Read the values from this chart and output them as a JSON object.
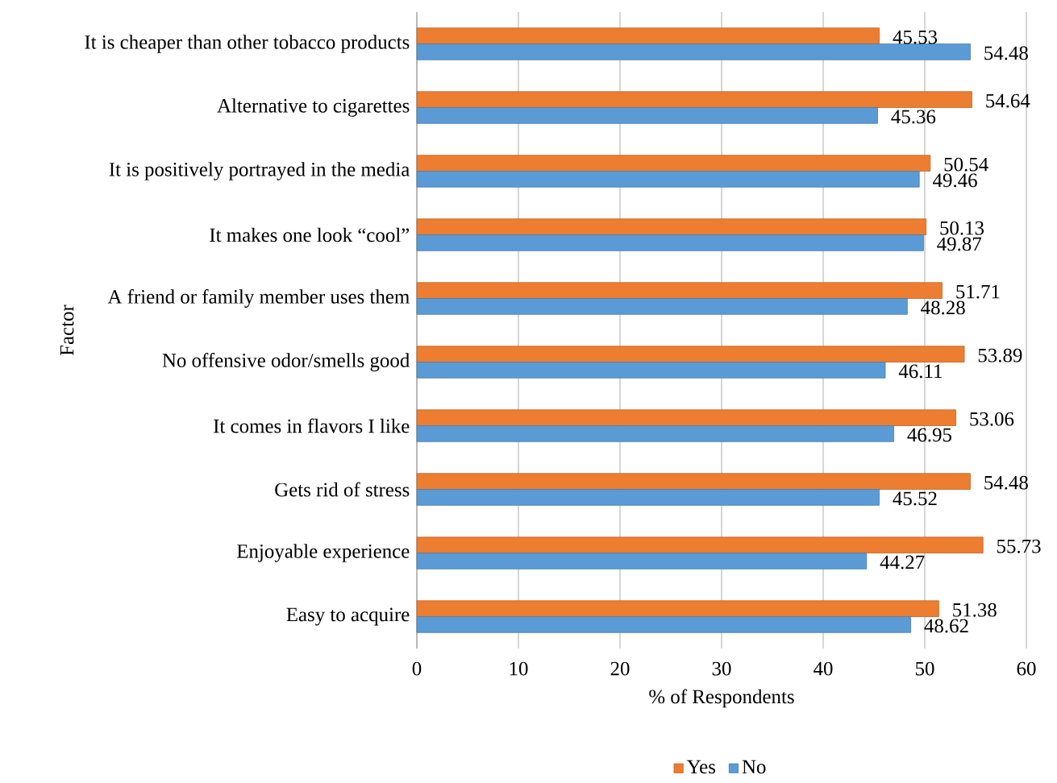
{
  "chart_data": {
    "type": "bar",
    "orientation": "horizontal",
    "xlabel": "% of Respondents",
    "ylabel": "Factor",
    "categories": [
      "It is cheaper than other tobacco products",
      "Alternative to cigarettes",
      "It is positively portrayed in the media",
      "It makes one look “cool”",
      "A friend or family member uses them",
      "No offensive odor/smells good",
      "It comes in flavors I like",
      "Gets rid of stress",
      "Enjoyable experience",
      "Easy to acquire"
    ],
    "series": [
      {
        "name": "Yes",
        "color": "#ed7d31",
        "values": [
          45.53,
          54.64,
          50.54,
          50.13,
          51.71,
          53.89,
          53.06,
          54.48,
          55.73,
          51.38
        ]
      },
      {
        "name": "No",
        "color": "#5b9bd5",
        "values": [
          54.48,
          45.36,
          49.46,
          49.87,
          48.28,
          46.11,
          46.95,
          45.52,
          44.27,
          48.62
        ]
      }
    ],
    "xlim": [
      0,
      60
    ],
    "xticks": [
      0,
      10,
      20,
      30,
      40,
      50,
      60
    ],
    "grid": "x",
    "legend": "bottom",
    "data_labels": true
  }
}
